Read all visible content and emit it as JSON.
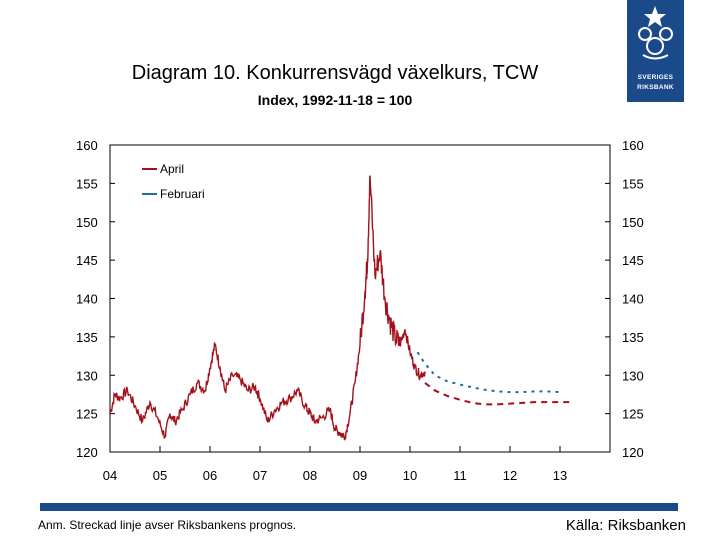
{
  "title": "Diagram 10. Konkurrensvägd växelkurs, TCW",
  "subtitle": "Index, 1992-11-18 = 100",
  "logo": {
    "line1": "SVERIGES",
    "line2": "RIKSBANK"
  },
  "note": "Anm. Streckad linje avser Riksbankens prognos.",
  "source": "Källa: Riksbanken",
  "colors": {
    "april": "#a3121c",
    "februari": "#1f6e9c",
    "brand": "#1a4a8a"
  },
  "chart_data": {
    "type": "line",
    "title": "Diagram 10. Konkurrensvägd växelkurs, TCW",
    "ylabel": "Index, 1992-11-18 = 100",
    "xlabel": "",
    "ylim": [
      120,
      160
    ],
    "xlim": [
      2004.0,
      2014.0
    ],
    "yticks": [
      120,
      125,
      130,
      135,
      140,
      145,
      150,
      155,
      160
    ],
    "xtick_labels": [
      "04",
      "05",
      "06",
      "07",
      "08",
      "09",
      "10",
      "11",
      "12",
      "13"
    ],
    "xtick_values": [
      2004.0,
      2005.0,
      2006.0,
      2007.0,
      2008.0,
      2009.0,
      2010.0,
      2011.0,
      2012.0,
      2013.0
    ],
    "legend": [
      "April",
      "Februari"
    ],
    "series": [
      {
        "name": "April",
        "style": "solid",
        "color": "#a3121c",
        "x": [
          2004.0,
          2004.1,
          2004.2,
          2004.35,
          2004.5,
          2004.65,
          2004.8,
          2004.95,
          2005.1,
          2005.2,
          2005.3,
          2005.45,
          2005.6,
          2005.75,
          2005.9,
          2006.0,
          2006.1,
          2006.2,
          2006.3,
          2006.45,
          2006.6,
          2006.75,
          2006.9,
          2007.0,
          2007.15,
          2007.3,
          2007.45,
          2007.6,
          2007.75,
          2007.9,
          2008.0,
          2008.1,
          2008.25,
          2008.4,
          2008.5,
          2008.6,
          2008.7,
          2008.8,
          2008.9,
          2009.0,
          2009.1,
          2009.15,
          2009.2,
          2009.3,
          2009.4,
          2009.5,
          2009.6,
          2009.7,
          2009.8,
          2009.9,
          2010.0,
          2010.1,
          2010.2,
          2010.3
        ],
        "y": [
          125.0,
          127.5,
          127.0,
          128.0,
          126.0,
          124.0,
          126.5,
          124.5,
          122.0,
          125.0,
          124.0,
          125.5,
          127.5,
          129.0,
          128.0,
          131.0,
          134.0,
          131.0,
          128.0,
          130.0,
          129.5,
          128.0,
          128.5,
          127.0,
          124.0,
          125.5,
          126.5,
          127.0,
          128.0,
          126.0,
          125.0,
          124.0,
          124.5,
          125.5,
          123.0,
          122.5,
          122.0,
          125.0,
          129.0,
          134.0,
          141.0,
          145.0,
          156.0,
          143.0,
          146.0,
          140.0,
          137.0,
          135.0,
          134.0,
          136.0,
          133.0,
          131.0,
          130.0,
          130.5
        ]
      },
      {
        "name": "April prognos",
        "style": "dashed",
        "color": "#a3121c",
        "x": [
          2010.3,
          2010.5,
          2010.75,
          2011.0,
          2011.25,
          2011.5,
          2011.75,
          2012.0,
          2012.25,
          2012.5,
          2012.75,
          2013.0,
          2013.25
        ],
        "y": [
          129.0,
          128.0,
          127.3,
          126.8,
          126.4,
          126.2,
          126.2,
          126.3,
          126.4,
          126.5,
          126.5,
          126.5,
          126.5
        ]
      },
      {
        "name": "Februari",
        "style": "dotted",
        "color": "#1f6e9c",
        "x": [
          2010.15,
          2010.3,
          2010.5,
          2010.75,
          2011.0,
          2011.25,
          2011.5,
          2011.75,
          2012.0,
          2012.25,
          2012.5,
          2012.75,
          2013.0
        ],
        "y": [
          133.0,
          131.5,
          130.0,
          129.2,
          128.8,
          128.4,
          128.1,
          127.9,
          127.8,
          127.8,
          127.9,
          127.9,
          127.8
        ]
      }
    ]
  }
}
